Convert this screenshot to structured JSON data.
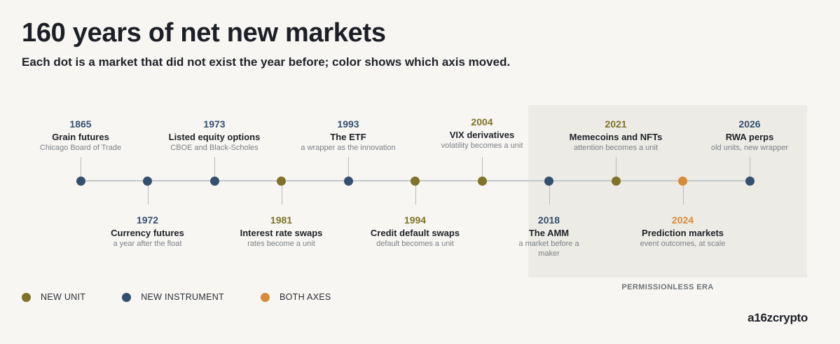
{
  "title": "160 years of net new markets",
  "subtitle": "Each dot is a market that did not exist the year before; color shows which axis moved.",
  "era_label": "PERMISSIONLESS ERA",
  "brand": "a16zcrypto",
  "colors": {
    "new_unit": "#7e7328",
    "new_instrument": "#34506f",
    "both_axes": "#d98b3c",
    "axis": "#c3c8cc",
    "era_shade": "#ecebe6"
  },
  "legend": [
    {
      "label": "NEW UNIT",
      "category": "new_unit"
    },
    {
      "label": "NEW INSTRUMENT",
      "category": "new_instrument"
    },
    {
      "label": "BOTH AXES",
      "category": "both_axes"
    }
  ],
  "events": [
    {
      "year": "1865",
      "name": "Grain futures",
      "desc": "Chicago Board of Trade",
      "category": "new_instrument",
      "side": "above"
    },
    {
      "year": "1972",
      "name": "Currency futures",
      "desc": "a year after the float",
      "category": "new_instrument",
      "side": "below"
    },
    {
      "year": "1973",
      "name": "Listed equity options",
      "desc": "CBOE and Black-Scholes",
      "category": "new_instrument",
      "side": "above"
    },
    {
      "year": "1981",
      "name": "Interest rate swaps",
      "desc": "rates become a unit",
      "category": "new_unit",
      "side": "below"
    },
    {
      "year": "1993",
      "name": "The ETF",
      "desc": "a wrapper as the innovation",
      "category": "new_instrument",
      "side": "above"
    },
    {
      "year": "1994",
      "name": "Credit default swaps",
      "desc": "default becomes a unit",
      "category": "new_unit",
      "side": "below"
    },
    {
      "year": "2004",
      "name": "VIX derivatives",
      "desc": "volatility becomes a unit",
      "category": "new_unit",
      "side": "above"
    },
    {
      "year": "2018",
      "name": "The AMM",
      "desc": "a market before a maker",
      "category": "new_instrument",
      "side": "below"
    },
    {
      "year": "2021",
      "name": "Memecoins and NFTs",
      "desc": "attention becomes a unit",
      "category": "new_unit",
      "side": "above"
    },
    {
      "year": "2024",
      "name": "Prediction markets",
      "desc": "event outcomes, at scale",
      "category": "both_axes",
      "side": "below"
    },
    {
      "year": "2026",
      "name": "RWA perps",
      "desc": "old units, new wrapper",
      "category": "new_instrument",
      "side": "above"
    }
  ]
}
